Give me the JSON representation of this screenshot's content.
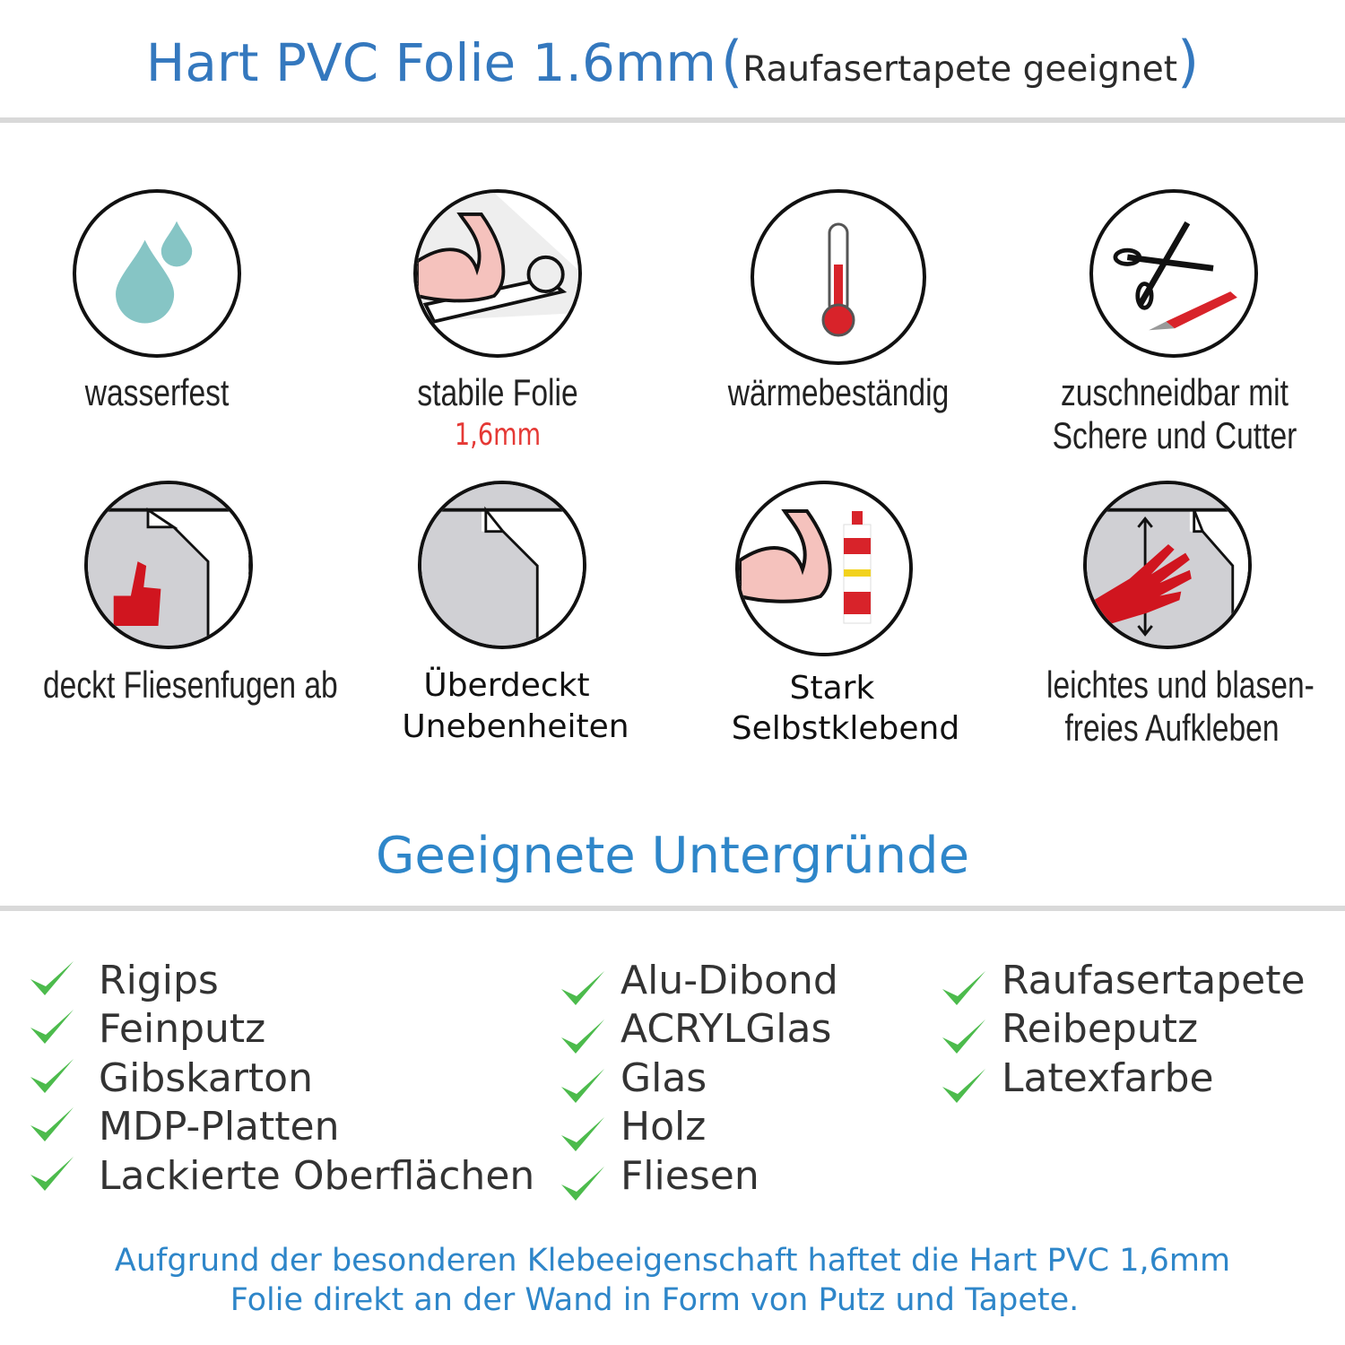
{
  "header": {
    "title": "Hart PVC Folie 1.6mm",
    "open_paren": "(",
    "subtitle": "Raufasertapete geeignet",
    "close_paren": ")"
  },
  "features": [
    {
      "icon": "water-drops-icon",
      "line1": "wasserfest"
    },
    {
      "icon": "muscle-roll-icon",
      "line1": "stabile Folie",
      "highlight": "1,6mm"
    },
    {
      "icon": "thermometer-icon",
      "line1": "wärmebeständig"
    },
    {
      "icon": "scissors-cutter-icon",
      "line1": "zuschneidbar mit",
      "line2": "Schere und Cutter"
    },
    {
      "icon": "thumbs-up-tile-icon",
      "line1": "deckt Fliesenfugen ab"
    },
    {
      "icon": "foil-corner-icon",
      "line1": "Überdeckt",
      "line2": "Unebenheiten"
    },
    {
      "icon": "muscle-glue-icon",
      "line1": "Stark",
      "line2": "Selbstklebend"
    },
    {
      "icon": "hand-smooth-icon",
      "line1": "leichtes und blasen-",
      "line2": "freies Aufkleben"
    }
  ],
  "section": {
    "title": "Geeignete Untergründe",
    "columns": [
      [
        "Rigips",
        "Feinputz",
        "Gibskarton",
        "MDP-Platten",
        "Lackierte Oberflächen"
      ],
      [
        "Alu-Dibond",
        "ACRYLGlas",
        "Glas",
        "Holz",
        "Fliesen"
      ],
      [
        "Raufasertapete",
        "Reibeputz",
        "Latexfarbe"
      ]
    ]
  },
  "footer": {
    "line1": "Aufgrund der besonderen Klebeeigenschaft haftet die Hart PVC 1,6mm",
    "line2": "Folie direkt an der Wand in Form von Putz und Tapete."
  },
  "colors": {
    "title_blue": "#3478be",
    "section_blue": "#2e86c9",
    "check_green": "#4cbb4c",
    "highlight_red": "#e53935",
    "rule_gray": "#d9d9d9"
  }
}
